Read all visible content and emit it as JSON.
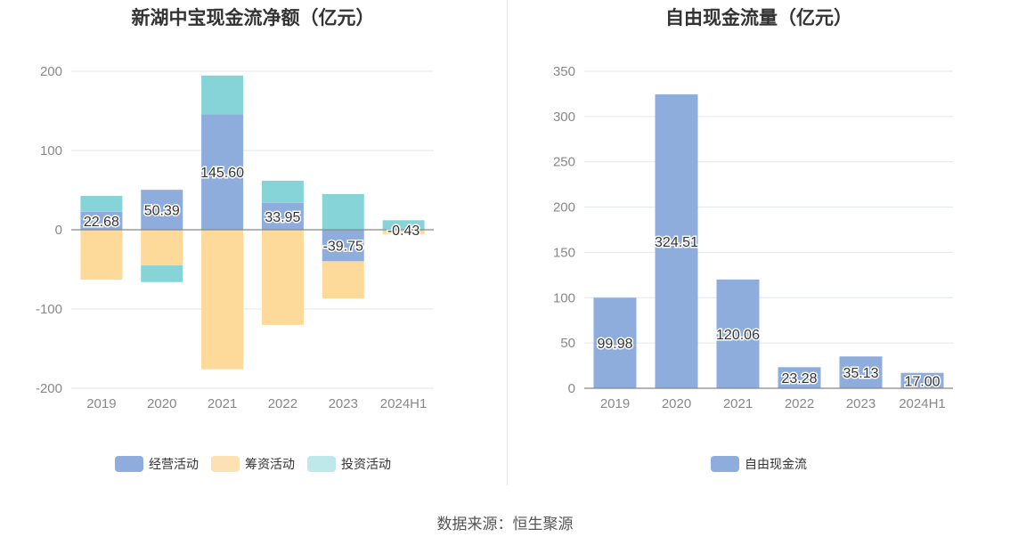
{
  "chart_data": [
    {
      "type": "bar",
      "stacked": true,
      "title": "新湖中宝现金流净额（亿元）",
      "categories": [
        "2019",
        "2020",
        "2021",
        "2022",
        "2023",
        "2024H1"
      ],
      "ylim": [
        -200,
        200
      ],
      "yticks": [
        200,
        100,
        0,
        -100,
        -200
      ],
      "series": [
        {
          "name": "经营活动",
          "color": "#8eaddc",
          "values": [
            22.68,
            50.39,
            145.6,
            33.95,
            -39.75,
            -0.43
          ]
        },
        {
          "name": "筹资活动",
          "color": "#fdd99a",
          "values": [
            -63,
            -45,
            -176,
            -120,
            -47,
            -5
          ]
        },
        {
          "name": "投资活动",
          "color": "#86d4d8",
          "values": [
            20,
            -21,
            49,
            28,
            45,
            12
          ]
        }
      ],
      "data_labels": [
        "22.68",
        "50.39",
        "145.60",
        "33.95",
        "-39.75",
        "-0.43"
      ],
      "legend_colors": [
        "#8eaddc",
        "#fde0b4",
        "#bfe8ea"
      ]
    },
    {
      "type": "bar",
      "title": "自由现金流量（亿元）",
      "categories": [
        "2019",
        "2020",
        "2021",
        "2022",
        "2023",
        "2024H1"
      ],
      "ylim": [
        0,
        350
      ],
      "yticks": [
        350,
        300,
        250,
        200,
        150,
        100,
        50,
        0
      ],
      "series": [
        {
          "name": "自由现金流",
          "color": "#8eaddc",
          "values": [
            99.98,
            324.51,
            120.06,
            23.28,
            35.13,
            17.0
          ]
        }
      ],
      "data_labels": [
        "99.98",
        "324.51",
        "120.06",
        "23.28",
        "35.13",
        "17.00"
      ]
    }
  ],
  "footer": {
    "source": "数据来源：恒生聚源"
  }
}
